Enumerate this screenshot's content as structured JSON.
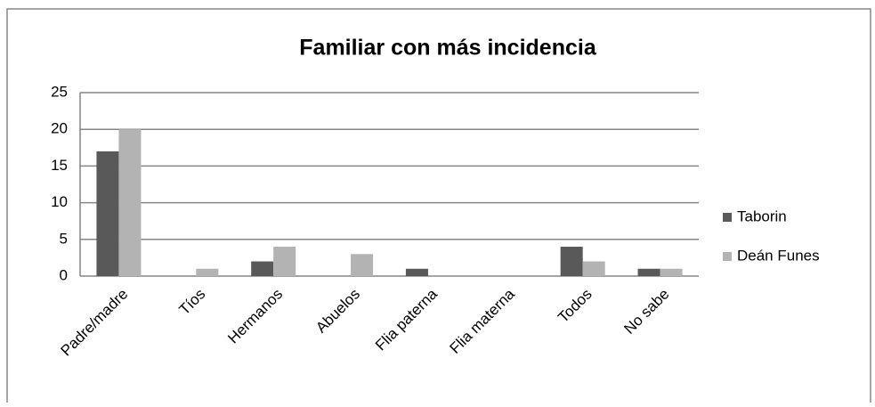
{
  "chart_data": {
    "type": "bar",
    "title": "Familiar con más incidencia",
    "categories": [
      "Padre/madre",
      "Tíos",
      "Hermanos",
      "Abuelos",
      "Flia paterna",
      "Flia materna",
      "Todos",
      "No sabe"
    ],
    "series": [
      {
        "name": "Taborin",
        "color": "#595959",
        "values": [
          17,
          0,
          2,
          0,
          1,
          0,
          4,
          1
        ]
      },
      {
        "name": "Deán Funes",
        "color": "#b3b3b3",
        "values": [
          20,
          1,
          4,
          3,
          0,
          0,
          2,
          1
        ]
      }
    ],
    "ylim": [
      0,
      25
    ],
    "yticks": [
      0,
      5,
      10,
      15,
      20,
      25
    ],
    "grid": true,
    "legend": "right"
  }
}
